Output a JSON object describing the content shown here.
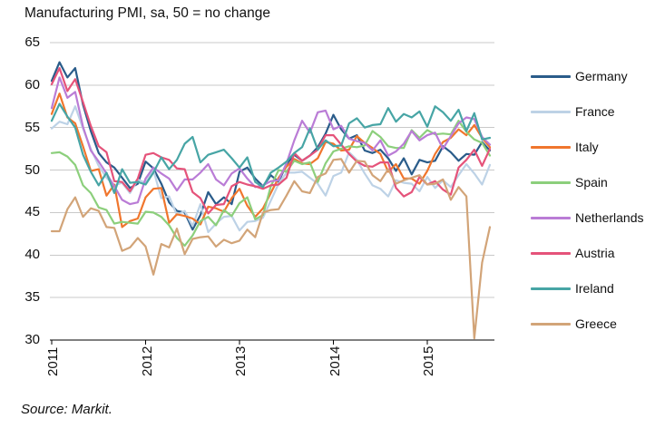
{
  "page": {
    "source_note": "Source: Markit."
  },
  "chart_data": {
    "type": "line",
    "title": "Manufacturing PMI, sa, 50 = no change",
    "x_unit": "month",
    "x_start": "2011-01",
    "x_end": "2015-09",
    "x_tick_labels": [
      "2011",
      "2012",
      "2013",
      "2014",
      "2015"
    ],
    "ylim": [
      30,
      65
    ],
    "y_ticks": [
      65,
      60,
      55,
      50,
      45,
      40,
      35,
      30
    ],
    "grid": "horizontal",
    "legend_position": "right",
    "reference_level_note": "50 = no change",
    "series": [
      {
        "name": "Germany",
        "color": "#2a5c8a",
        "values": [
          60.5,
          62.7,
          60.9,
          62.0,
          57.7,
          54.6,
          52.0,
          50.9,
          50.3,
          49.1,
          47.9,
          48.4,
          51.0,
          50.2,
          48.4,
          46.2,
          45.2,
          45.0,
          43.0,
          44.7,
          47.4,
          46.0,
          46.8,
          46.0,
          49.8,
          50.3,
          49.0,
          48.1,
          49.4,
          48.6,
          50.7,
          51.8,
          51.1,
          51.7,
          52.7,
          54.3,
          56.5,
          54.8,
          53.7,
          54.1,
          52.3,
          52.0,
          52.4,
          51.4,
          49.9,
          51.4,
          49.5,
          51.2,
          50.9,
          51.1,
          52.8,
          52.1,
          51.1,
          51.9,
          51.8,
          53.3,
          52.3
        ]
      },
      {
        "name": "France",
        "color": "#bdd2e6",
        "values": [
          54.9,
          55.7,
          55.4,
          57.5,
          54.9,
          52.5,
          50.5,
          49.1,
          48.2,
          48.5,
          47.3,
          48.9,
          48.5,
          50.0,
          46.7,
          46.9,
          44.7,
          45.2,
          43.4,
          46.0,
          42.7,
          43.7,
          44.5,
          44.6,
          42.9,
          43.9,
          44.0,
          44.4,
          46.4,
          48.4,
          49.7,
          49.7,
          49.8,
          49.1,
          48.4,
          47.0,
          49.3,
          49.7,
          52.1,
          51.2,
          49.6,
          48.2,
          47.8,
          46.9,
          48.8,
          48.5,
          48.4,
          47.5,
          49.2,
          47.9,
          48.8,
          48.0,
          49.4,
          50.7,
          49.6,
          48.3,
          50.6
        ]
      },
      {
        "name": "Italy",
        "color": "#f0762d",
        "values": [
          56.6,
          59.0,
          56.2,
          55.5,
          52.8,
          49.9,
          50.1,
          47.0,
          48.3,
          43.3,
          44.0,
          44.3,
          46.8,
          47.8,
          47.9,
          43.8,
          44.8,
          44.6,
          44.3,
          43.6,
          45.7,
          45.5,
          45.1,
          46.7,
          47.8,
          45.8,
          44.5,
          45.5,
          47.3,
          49.1,
          50.4,
          51.3,
          50.8,
          50.7,
          51.4,
          53.3,
          53.1,
          52.3,
          52.4,
          54.0,
          53.2,
          52.6,
          51.9,
          49.8,
          50.7,
          49.0,
          49.0,
          48.4,
          49.9,
          51.9,
          53.3,
          53.8,
          54.8,
          54.1,
          55.3,
          53.8,
          52.7
        ]
      },
      {
        "name": "Spain",
        "color": "#8ccf7c",
        "values": [
          52.0,
          52.1,
          51.6,
          50.6,
          48.2,
          47.3,
          45.6,
          45.3,
          43.7,
          43.9,
          43.8,
          43.7,
          45.1,
          45.0,
          44.5,
          43.5,
          42.0,
          41.1,
          42.3,
          44.0,
          44.5,
          43.5,
          45.3,
          44.6,
          46.1,
          46.8,
          44.2,
          44.7,
          48.1,
          50.0,
          49.8,
          51.1,
          50.7,
          50.9,
          48.6,
          50.8,
          52.2,
          52.5,
          52.8,
          52.7,
          52.9,
          54.6,
          53.9,
          52.8,
          52.6,
          52.6,
          54.7,
          53.8,
          54.7,
          54.2,
          54.3,
          54.2,
          55.8,
          54.5,
          53.6,
          53.2,
          51.7
        ]
      },
      {
        "name": "Netherlands",
        "color": "#ba7cd6",
        "values": [
          57.3,
          60.9,
          58.5,
          59.2,
          55.1,
          52.3,
          51.0,
          49.6,
          48.1,
          46.5,
          46.0,
          46.2,
          49.0,
          50.3,
          49.6,
          49.0,
          47.6,
          48.9,
          48.9,
          49.7,
          50.7,
          48.9,
          48.2,
          49.6,
          50.2,
          49.0,
          48.0,
          48.2,
          48.7,
          48.8,
          50.8,
          53.5,
          55.8,
          54.4,
          56.8,
          57.0,
          54.8,
          55.2,
          53.7,
          53.4,
          53.2,
          52.3,
          53.5,
          51.7,
          52.2,
          53.1,
          54.6,
          53.5,
          54.1,
          54.4,
          52.5,
          54.0,
          55.5,
          56.2,
          56.0,
          53.9,
          53.0
        ]
      },
      {
        "name": "Austria",
        "color": "#e5537a",
        "values": [
          60.1,
          62.0,
          59.3,
          60.7,
          58.0,
          55.2,
          52.8,
          52.1,
          48.7,
          48.6,
          47.5,
          49.0,
          51.8,
          52.0,
          51.5,
          51.2,
          50.2,
          50.1,
          47.4,
          46.7,
          44.9,
          45.9,
          46.0,
          48.1,
          48.6,
          48.3,
          48.1,
          47.8,
          48.2,
          48.3,
          49.1,
          52.0,
          51.1,
          51.7,
          52.4,
          54.1,
          54.1,
          53.0,
          51.9,
          51.0,
          50.5,
          50.4,
          50.9,
          50.9,
          47.9,
          46.9,
          47.4,
          49.2,
          48.3,
          48.7,
          47.7,
          47.1,
          50.3,
          51.2,
          52.4,
          50.5,
          52.5
        ]
      },
      {
        "name": "Ireland",
        "color": "#47a5a5",
        "values": [
          55.8,
          57.8,
          56.3,
          55.0,
          51.8,
          49.8,
          48.2,
          49.7,
          47.3,
          50.1,
          48.5,
          48.6,
          48.3,
          49.7,
          51.5,
          50.1,
          51.2,
          53.1,
          53.9,
          50.9,
          51.8,
          52.1,
          52.4,
          51.4,
          50.3,
          51.5,
          48.6,
          48.0,
          49.7,
          50.3,
          51.0,
          52.0,
          52.7,
          54.9,
          52.4,
          53.5,
          52.8,
          52.9,
          55.5,
          56.1,
          55.0,
          55.3,
          55.4,
          57.3,
          55.7,
          56.6,
          56.2,
          56.9,
          55.1,
          57.5,
          56.8,
          55.8,
          57.1,
          54.6,
          56.7,
          53.6,
          53.8
        ]
      },
      {
        "name": "Greece",
        "color": "#d2a478",
        "values": [
          42.8,
          42.8,
          45.4,
          46.8,
          44.5,
          45.5,
          45.2,
          43.3,
          43.2,
          40.5,
          40.9,
          42.0,
          41.0,
          37.7,
          41.3,
          40.9,
          43.1,
          40.1,
          41.9,
          42.1,
          42.2,
          41.0,
          41.8,
          41.4,
          41.7,
          43.0,
          42.1,
          45.0,
          45.3,
          45.4,
          47.0,
          48.7,
          47.5,
          47.3,
          49.2,
          49.6,
          51.2,
          51.3,
          49.7,
          51.1,
          51.0,
          49.4,
          48.7,
          50.1,
          48.4,
          48.8,
          49.1,
          49.4,
          48.3,
          48.4,
          48.9,
          46.5,
          48.0,
          46.9,
          30.2,
          39.1,
          43.3
        ]
      }
    ]
  }
}
